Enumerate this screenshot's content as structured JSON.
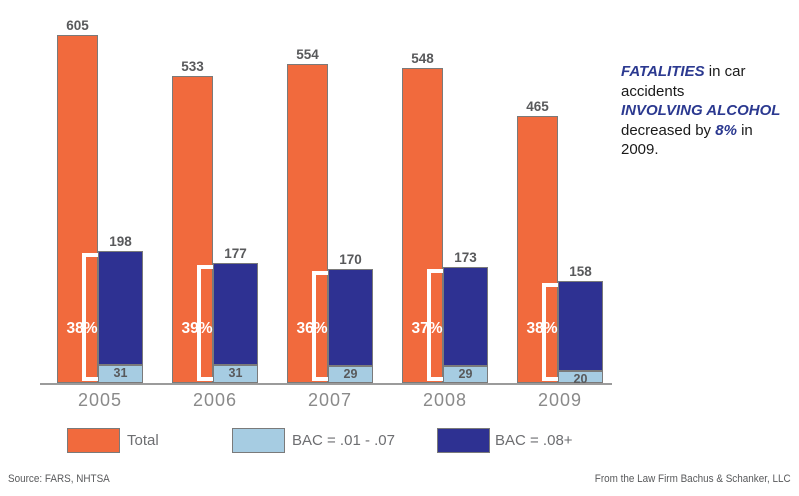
{
  "chart_data": {
    "type": "bar",
    "title": "",
    "categories": [
      "2005",
      "2006",
      "2007",
      "2008",
      "2009"
    ],
    "series": [
      {
        "name": "Total",
        "color": "#F16A3D",
        "values": [
          605,
          533,
          554,
          548,
          465
        ]
      },
      {
        "name": "BAC = .01 - .07",
        "color": "#A6CCE2",
        "values": [
          31,
          31,
          29,
          29,
          20
        ]
      },
      {
        "name": "BAC = .08+",
        "color": "#2E3192",
        "values": [
          198,
          177,
          170,
          173,
          158
        ]
      }
    ],
    "stacked_series": [
      "BAC = .01 - .07",
      "BAC = .08+"
    ],
    "percent_labels": [
      "38%",
      "39%",
      "36%",
      "37%",
      "38%"
    ],
    "xlabel": "",
    "ylabel": "",
    "ylim": [
      0,
      650
    ],
    "grid": false,
    "legend_position": "bottom",
    "label_color": "#58595b",
    "axis_color": "#9b9b9b",
    "bracket_color": "#ffffff"
  },
  "annotation": {
    "accent_color": "#2B3990",
    "lines": [
      [
        {
          "t": "FATALITIES",
          "em": true
        },
        {
          "t": " in car",
          "em": false
        }
      ],
      [
        {
          "t": "accidents",
          "em": false
        }
      ],
      [
        {
          "t": "INVOLVING ALCOHOL",
          "em": true
        }
      ],
      [
        {
          "t": "decreased by ",
          "em": false
        },
        {
          "t": "8%",
          "em": true
        },
        {
          "t": " in",
          "em": false
        }
      ],
      [
        {
          "t": "2009.",
          "em": false
        }
      ]
    ]
  },
  "legend": {
    "items": [
      {
        "label": "Total",
        "color": "#F16A3D"
      },
      {
        "label": "BAC = .01 - .07",
        "color": "#A6CCE2"
      },
      {
        "label": "BAC = .08+",
        "color": "#2E3192"
      }
    ]
  },
  "footer": {
    "left": "Source: FARS, NHTSA",
    "right": "From the Law Firm Bachus & Schanker, LLC"
  }
}
